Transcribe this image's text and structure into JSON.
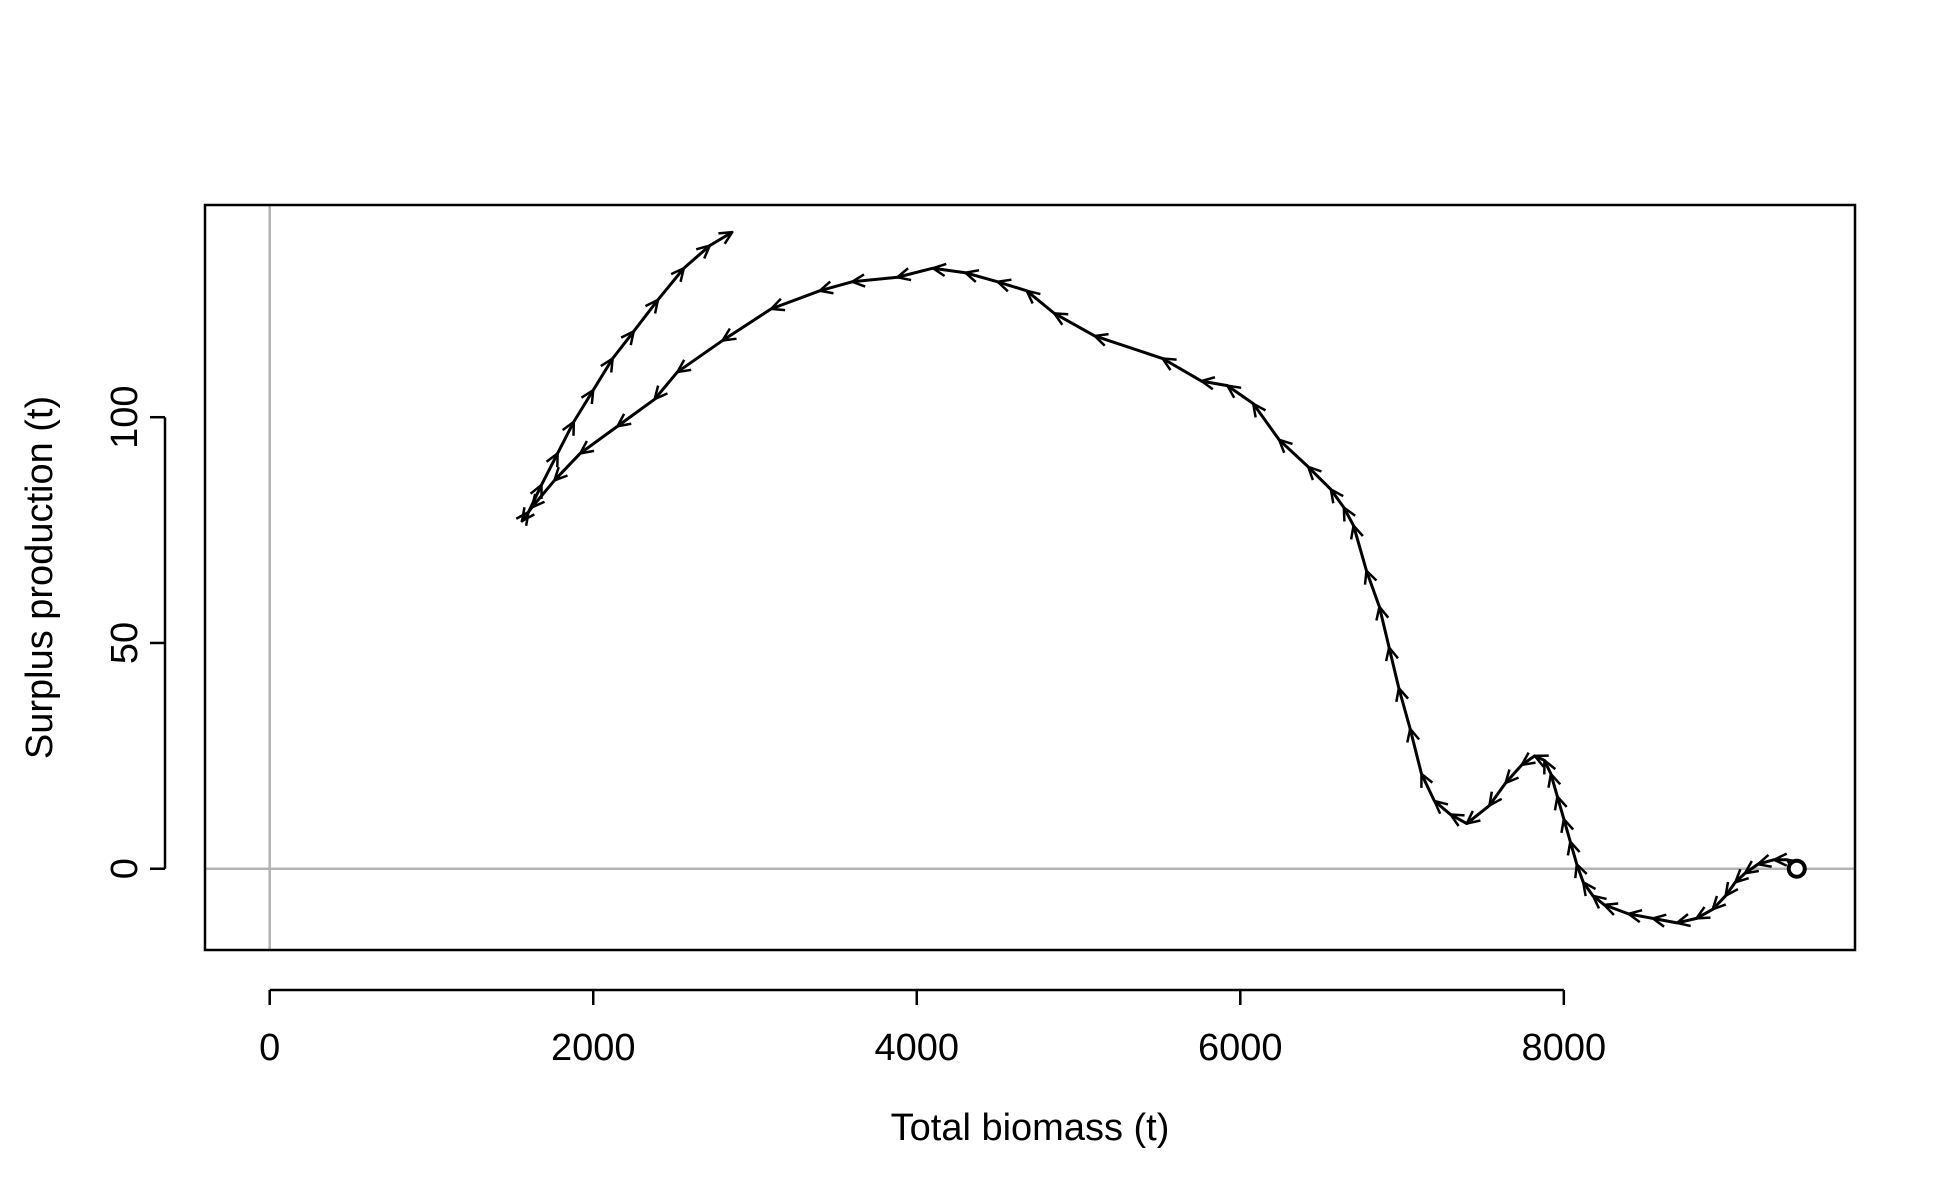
{
  "chart_data": {
    "type": "line",
    "title": "",
    "xlabel": "Total biomass (t)",
    "ylabel": "Surplus production (t)",
    "xlim": [
      -400,
      9800
    ],
    "ylim": [
      -18,
      147
    ],
    "xticks": [
      0,
      2000,
      4000,
      6000,
      8000
    ],
    "yticks": [
      0,
      50,
      100
    ],
    "reference_lines": {
      "x": 0,
      "y": 0,
      "color": "#b3b3b3"
    },
    "grid": false,
    "arrows": true,
    "start_marker": "open-circle",
    "series": [
      {
        "x": [
          9440,
          9420,
          9380,
          9300,
          9200,
          9120,
          9060,
          9000,
          8920,
          8820,
          8700,
          8550,
          8400,
          8250,
          8180,
          8120,
          8080,
          8040,
          8000,
          7960,
          7920,
          7880,
          7820,
          7740,
          7640,
          7540,
          7400,
          7300,
          7200,
          7120,
          7050,
          6980,
          6920,
          6860,
          6780,
          6700,
          6640,
          6560,
          6420,
          6240,
          6080,
          5920,
          5760,
          5520,
          5100,
          4850,
          4680,
          4500,
          4300,
          4100,
          3880,
          3600,
          3400,
          3100,
          2800,
          2520,
          2380,
          2150,
          1920,
          1760,
          1620,
          1560,
          1600,
          1680,
          1780,
          1880,
          2000,
          2120,
          2250,
          2400,
          2560,
          2720,
          2860
        ],
        "y": [
          0,
          1,
          2,
          2,
          1,
          -1,
          -3,
          -6,
          -9,
          -11,
          -12,
          -11,
          -10,
          -8,
          -6,
          -3,
          1,
          6,
          11,
          16,
          21,
          24,
          25,
          23,
          19,
          14,
          10,
          12,
          15,
          21,
          31,
          40,
          49,
          58,
          66,
          76,
          80,
          84,
          89,
          95,
          103,
          107,
          108,
          113,
          118,
          123,
          128,
          130,
          132,
          133,
          131,
          130,
          128,
          124,
          117,
          110,
          104,
          98,
          92,
          86,
          80,
          77,
          79,
          85,
          92,
          99,
          106,
          113,
          119,
          126,
          133,
          138,
          141
        ]
      }
    ]
  }
}
